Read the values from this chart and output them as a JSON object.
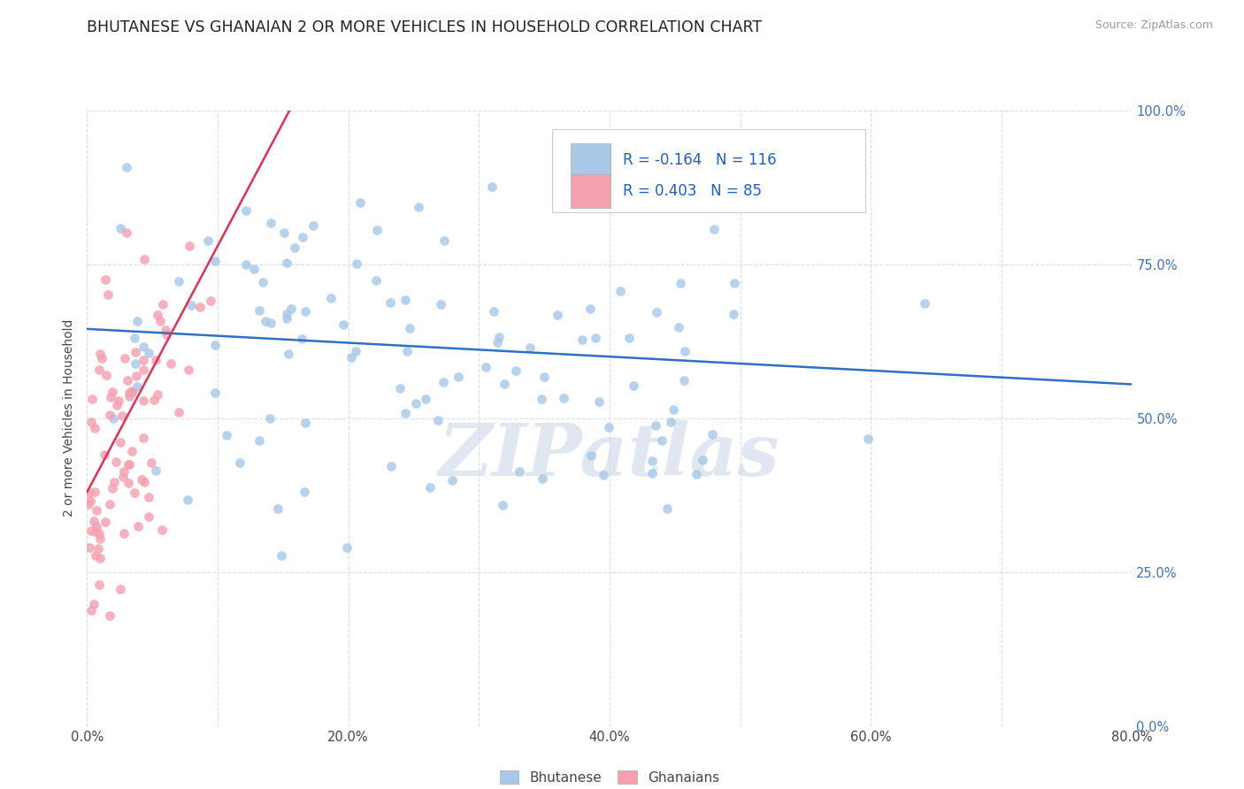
{
  "title": "BHUTANESE VS GHANAIAN 2 OR MORE VEHICLES IN HOUSEHOLD CORRELATION CHART",
  "source_text": "Source: ZipAtlas.com",
  "ylabel": "2 or more Vehicles in Household",
  "xlim": [
    0.0,
    0.8
  ],
  "ylim": [
    0.0,
    1.0
  ],
  "xtick_labels": [
    "0.0%",
    "",
    "20.0%",
    "",
    "40.0%",
    "",
    "60.0%",
    "",
    "80.0%"
  ],
  "xtick_values": [
    0.0,
    0.1,
    0.2,
    0.3,
    0.4,
    0.5,
    0.6,
    0.7,
    0.8
  ],
  "ytick_labels": [
    "0.0%",
    "25.0%",
    "50.0%",
    "75.0%",
    "100.0%"
  ],
  "ytick_values": [
    0.0,
    0.25,
    0.5,
    0.75,
    1.0
  ],
  "legend_blue_label": "Bhutanese",
  "legend_pink_label": "Ghanaians",
  "R_blue": -0.164,
  "N_blue": 116,
  "R_pink": 0.403,
  "N_pink": 85,
  "blue_color": "#a8c8e8",
  "pink_color": "#f4a0b0",
  "blue_line_color": "#3070c0",
  "pink_line_color": "#e03055",
  "watermark_text": "ZIPatlas",
  "watermark_color": "#ccd8e8",
  "background_color": "#ffffff",
  "title_color": "#222222",
  "title_fontsize": 12.5,
  "axis_label_fontsize": 10,
  "tick_fontsize": 10.5,
  "legend_R_color": "#2060c0",
  "right_tick_color": "#4070c0",
  "grid_color": "#d8dde8",
  "blue_line_start_y": 0.645,
  "blue_line_end_y": 0.555,
  "pink_line_x0": 0.0,
  "pink_line_y0": 0.38,
  "pink_line_x1": 0.155,
  "pink_line_y1": 1.0
}
